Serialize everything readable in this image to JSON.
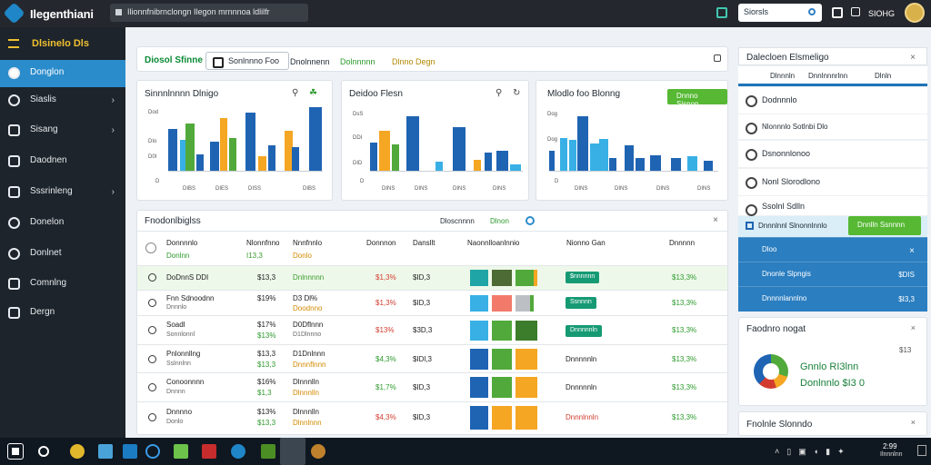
{
  "window": {
    "app_title": "Ilegenthiani",
    "address": "Ilionnfnibrnclongn Ilegon mrnnnoa ldlilfr",
    "search_placeholder": "Siorsls",
    "user_name": "SIOHG"
  },
  "sidebar": {
    "header": "Dlsinelo Dls",
    "items": [
      {
        "label": "Donglon"
      },
      {
        "label": "Siaslis"
      },
      {
        "label": "Sisang"
      },
      {
        "label": "Daodnen"
      },
      {
        "label": "Sssrinleng"
      },
      {
        "label": "Donelon"
      },
      {
        "label": "Donlnet"
      },
      {
        "label": "Comnlng"
      },
      {
        "label": "Dergn"
      }
    ]
  },
  "toolbar": {
    "title": "Diosol Sfinne",
    "button": "Sonlnnno Foo",
    "link1": "Dnolnnenn",
    "link2": "Dolnnnnn",
    "link3": "Dlnno Degn"
  },
  "mini_charts": [
    {
      "title": "Sinnnlnnnn Dlnigo",
      "ylabels": [
        "Dod",
        "DIo",
        "D0I",
        "D"
      ],
      "xlabels": [
        "DIBS",
        "DIES",
        "DISS",
        "DIBS"
      ]
    },
    {
      "title": "Deidoo Flesn",
      "ylabels": [
        "DsS",
        "DDI",
        "DID",
        "D"
      ],
      "xlabels": [
        "DINS",
        "DINS",
        "DINS",
        "DINS"
      ]
    },
    {
      "title": "Mlodlo foo Blonng",
      "button": "Dnnno Sisnon",
      "ylabels": [
        "Dog",
        "Dog",
        "D"
      ],
      "xlabels": [
        "DINS",
        "DINS",
        "DINS",
        "DINS"
      ]
    }
  ],
  "table": {
    "title": "Fnodonlbiglss",
    "header_actions": "Dloscnnnn",
    "header_green": "Dlnon",
    "columns": [
      "Donnnnlo",
      "Nlonnfnno",
      "Nnnfnnlo",
      "Donnnon",
      "Dansllt",
      "Naonnlloanlnnio",
      "Nionno Gan",
      "Dnnnnn"
    ],
    "rows": [
      {
        "name": "Donnnnnlo",
        "sub": "Donlnn",
        "c2": "Nonnfnnn",
        "c2sub": "I13,3",
        "c3": "Nnnfnnlo",
        "c3sub": "Donlo",
        "c4": "",
        "c5": "",
        "badge": "",
        "val": ""
      },
      {
        "name": "DoDnnS DDI",
        "sub": "",
        "c2": "$13,3",
        "c2sub": "",
        "c3": "Dnlnnnnn",
        "c3sub": "",
        "c4": "$1,3%",
        "c5": "$ID,3",
        "badge": "$nnnnnn",
        "val": "$13,3%"
      },
      {
        "name": "Fnn Sdnoodnn",
        "sub": "Dnnnlo",
        "c2": "$19%",
        "c2sub": "",
        "c3": "D3 Dl%",
        "c3sub": "Doodnno",
        "c4": "$1,3%",
        "c5": "$ID,3",
        "badge": "Ssnnnn",
        "val": "$13,3%"
      },
      {
        "name": "Soadl",
        "sub": "Sonnlonnl",
        "c2": "$17%",
        "c2sub": "$13%",
        "c3": "D0Dflnnn",
        "c3sub": "D1Dlnnno",
        "c4": "$13%",
        "c5": "$3D,3",
        "badge": "Dnnnnnln",
        "val": "$13,3%"
      },
      {
        "name": "Pnlonnllng",
        "sub": "Sslnnlnn",
        "c2": "$13,3",
        "c2sub": "$13,3",
        "c3": "D1Dnlnnn",
        "c3sub": "Dnnnflnnn",
        "c4": "$4,3%",
        "c5": "$IDl,3",
        "badge": "Dnnnnnln",
        "val": "$13,3%"
      },
      {
        "name": "Conoonnnn",
        "sub": "Dnnnn",
        "c2": "$16%",
        "c2sub": "$1,3",
        "c3": "Dlnnnlln",
        "c3sub": "Dlnnnlln",
        "c4": "$1,7%",
        "c5": "$ID,3",
        "badge": "Dnnnnnln",
        "val": "$13,3%"
      },
      {
        "name": "Dnnnno",
        "sub": "Donlo",
        "c2": "$13%",
        "c2sub": "$13,3",
        "c3": "Dlnnnlln",
        "c3sub": "Dlnnlnnn",
        "c4": "$4,3%",
        "c5": "$ID,3",
        "badge": "Dnnnlnnln",
        "val": "$13,3%"
      }
    ]
  },
  "right_panel": {
    "title": "Dalecloen Elsmeligo",
    "tabs": [
      "Dlnnnln",
      "Dnnlnnnrlnn",
      "Dlnln"
    ],
    "items": [
      "Dodnnnlo",
      "Nlonnnlo Sotlnbi Dlo",
      "Dsnonnlonoo",
      "Nonl Slorodlono",
      "Ssolnl Sdlln"
    ],
    "selected_item": "Dnnnlnnl Slnonnlnnlo",
    "selected_button": "Dnnlln Ssnnnn",
    "blue_rows": [
      {
        "label": "Dloo",
        "val": ""
      },
      {
        "label": "Dnonle Slpngis",
        "val": "$DIS"
      },
      {
        "label": "Dnnnnlannlno",
        "val": "$I3,3"
      }
    ],
    "summary_title": "Faodnro nogat",
    "summary_value": "$13",
    "summary_line1": "Gnnlo RI3lnn",
    "summary_line2": "Donlnnlo $I3 0",
    "footer_title": "Fnolnle Slonndo"
  },
  "taskbar": {
    "time": "2:99",
    "date": "Ilnnnlnn"
  },
  "colors": {
    "accent_blue": "#2b8ccc",
    "green": "#56b833",
    "orange": "#f5a623",
    "teal": "#169a74"
  }
}
